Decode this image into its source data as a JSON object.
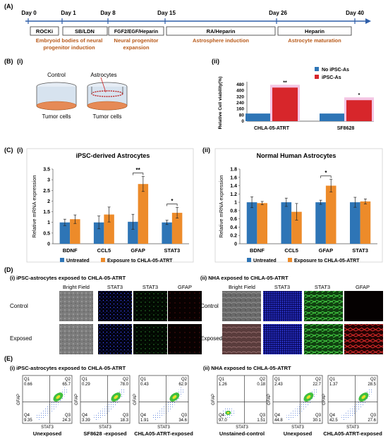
{
  "panelA": {
    "label": "(A)",
    "days": [
      "Day 0",
      "Day 1",
      "Day 8",
      "Day 15",
      "Day 26",
      "Day 40"
    ],
    "boxes": [
      "ROCKi",
      "SB/LDN",
      "FGF2/EGF/Heparin",
      "RA/Heparin",
      "Heparin"
    ],
    "stage1a": "Embryoid bodies of neural",
    "stage1b": "progenitor induction",
    "stage2a": "Neural progenitor",
    "stage2b": "expansion",
    "stage3": "Astrosphere induction",
    "stage4": "Astrocyte maturation"
  },
  "panelB": {
    "label": "(B)",
    "sub_i": "(i)",
    "sub_ii": "(ii)",
    "control": "Control",
    "astrocytes": "Astrocytes",
    "tumor1": "Tumor cells",
    "tumor2": "Tumor cells"
  },
  "panelC": {
    "label": "(C)",
    "sub_i": "(i)",
    "sub_ii": "(ii)"
  },
  "panelD": {
    "label": "(D)",
    "title_i": "(i) iPSC-astrocytes exposed to CHLA-05-ATRT",
    "title_ii": "(ii) NHA exposed to CHLA-05-ATRT",
    "cols": [
      "Bright Field",
      "STAT3",
      "STAT3",
      "GFAP"
    ],
    "rows": [
      "Control",
      "Exposed"
    ]
  },
  "panelE": {
    "label": "(E)",
    "title_i": "(i) iPSC-astrocytes exposed to CHLA-05-ATRT",
    "title_ii": "(ii) NHA exposed to CHLA-05-ATRT",
    "ylabel": "GFAP",
    "xlabel": "STAT3",
    "plots": [
      {
        "caption": "Unexposed",
        "q1": "0.66",
        "q2": "65.7",
        "q3": "24.3",
        "q4": "9.35"
      },
      {
        "caption": "SF8628 -exposed",
        "q1": "0.29",
        "q2": "78.0",
        "q3": "18.3",
        "q4": "3.39"
      },
      {
        "caption": "CHLA05-ATRT-exposed",
        "q1": "0.43",
        "q2": "62.9",
        "q3": "34.6",
        "q4": "1.91"
      },
      {
        "caption": "Unstained-control",
        "q1": "1.26",
        "q2": "0.18",
        "q3": "1.51",
        "q4": "97.0"
      },
      {
        "caption": "Unexposed",
        "q1": "2.43",
        "q2": "22.7",
        "q3": "30.1",
        "q4": "44.8"
      },
      {
        "caption": "CHLA05-ATRT-exposed",
        "q1": "1.37",
        "q2": "28.5",
        "q3": "27.6",
        "q4": "42.5"
      }
    ]
  },
  "colors": {
    "blue": "#2e75b6",
    "red": "#d7262b",
    "orange": "#ed8b2a",
    "brown": "#b85a1a",
    "pink": "#f4c6e4",
    "timeline": "#2e5ea8"
  },
  "chart_data": [
    {
      "type": "bar",
      "title": "",
      "ylabel": "Relative Cell viability(%)",
      "categories": [
        "CHLA-05-ATRT",
        "SF8628"
      ],
      "ylim": [
        0,
        480
      ],
      "yticks": [
        "0",
        "80",
        "160",
        "240",
        "320",
        "400",
        "480"
      ],
      "series": [
        {
          "name": "No iPSC-As",
          "values": [
            100,
            100
          ]
        },
        {
          "name": "iPSC-As",
          "values": [
            440,
            275
          ]
        }
      ],
      "annotations": [
        "**",
        "*"
      ],
      "legend": "top-right"
    },
    {
      "type": "bar",
      "title": "iPSC-derived Astrocytes",
      "ylabel": "Relative mRNA expression",
      "categories": [
        "BDNF",
        "CCL5",
        "GFAP",
        "STAT3"
      ],
      "ylim": [
        0,
        3.5
      ],
      "yticks": [
        "0",
        "0.5",
        "1",
        "1.5",
        "2",
        "2.5",
        "3",
        "3.5"
      ],
      "series": [
        {
          "name": "Untreated",
          "values": [
            1.0,
            1.0,
            1.03,
            1.0
          ],
          "errors": [
            0.15,
            0.3,
            0.35,
            0.1
          ]
        },
        {
          "name": "Exposure to CHLA-05-ATRT",
          "values": [
            1.15,
            1.37,
            2.8,
            1.45
          ],
          "errors": [
            0.2,
            0.35,
            0.35,
            0.25
          ]
        }
      ],
      "annotations": [
        "**",
        "*"
      ],
      "legend": "bottom"
    },
    {
      "type": "bar",
      "title": "Normal Human Astrocytes",
      "ylabel": "Relative mRNA expression",
      "categories": [
        "BDNF",
        "CCL5",
        "GFAP",
        "STAT3"
      ],
      "ylim": [
        0,
        1.8
      ],
      "yticks": [
        "0",
        "0.2",
        "0.4",
        "0.6",
        "0.8",
        "1",
        "1.2",
        "1.4",
        "1.6",
        "1.8"
      ],
      "series": [
        {
          "name": "Untreated",
          "values": [
            1.0,
            1.0,
            1.0,
            1.0
          ],
          "errors": [
            0.13,
            0.1,
            0.05,
            0.12
          ]
        },
        {
          "name": "Exposure to CHLA-05-ATRT",
          "values": [
            0.98,
            0.77,
            1.4,
            1.02
          ],
          "errors": [
            0.04,
            0.2,
            0.15,
            0.06
          ]
        }
      ],
      "annotations": [
        "*"
      ],
      "legend": "bottom"
    }
  ]
}
